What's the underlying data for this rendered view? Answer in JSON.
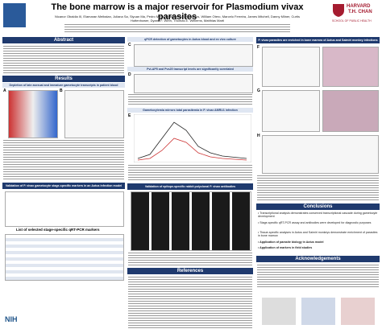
{
  "header": {
    "title": "The bone marrow is a major reservoir for Plasmodium vivax parasites",
    "authors": "Nicanor Obaldia III, Elamaran Meibalan, Juliana Sa, Siyuan Ma, Pedro Mejia, Roberta Moraes Barros, William Otero, Marcelo Ferreira, James Mitchell, Danny Milner, Curtis Huttenhower, Dyann F. Wirth, Thomas E. Wellems, Matthias Marti",
    "logo": [
      "HARVARD",
      "T.H. CHAN",
      "SCHOOL OF PUBLIC HEALTH"
    ]
  },
  "sections": {
    "abstract": "Abstract",
    "results": "Results",
    "conclusions": "Conclusions",
    "references": "References",
    "acknowledgements": "Acknowledgements"
  },
  "subheaders": {
    "depletion": "Depletion of late asexual and immature gametocyte transcripts in patient blood",
    "validation": "Validation of P. vivax gametocyte stage-specific markers in an Aotus infection model",
    "markers": "List of selected stage-specific qRT-PCR markers",
    "qpcr": "qPCR detection of gametocytes in Aotus blood and ex vivo culture",
    "correlated": "PvLAP5 and Pvs25 transcript levels are significantly correlated",
    "gametocytemia": "Gametocytemia mirrors total parasitemia in P. vivax AMRU1 infection",
    "antibodies": "Validation of epitope-specific rabbit polyclonal P. vivax antibodies",
    "enriched": "P. vivax parasites are enriched in bone marrow of Aotus and Saimiri monkey infections"
  },
  "panels": [
    "A",
    "B",
    "C",
    "D",
    "E",
    "F",
    "G",
    "H"
  ],
  "conclusions": [
    "Transcriptional analysis demonstrates conserved transcriptional cascade during gametocyte development",
    "Stage-specific qRT-PCR assay and antibodies were developed for diagnostic purposes",
    "Tissue-specific analyses in Aotus and Saimiri monkeys demonstrate enrichment of parasites in bone marrow",
    "Application of parasite biology in Aotus model",
    "Application of markers in field studies"
  ],
  "footer": {
    "nih": "NIH"
  }
}
